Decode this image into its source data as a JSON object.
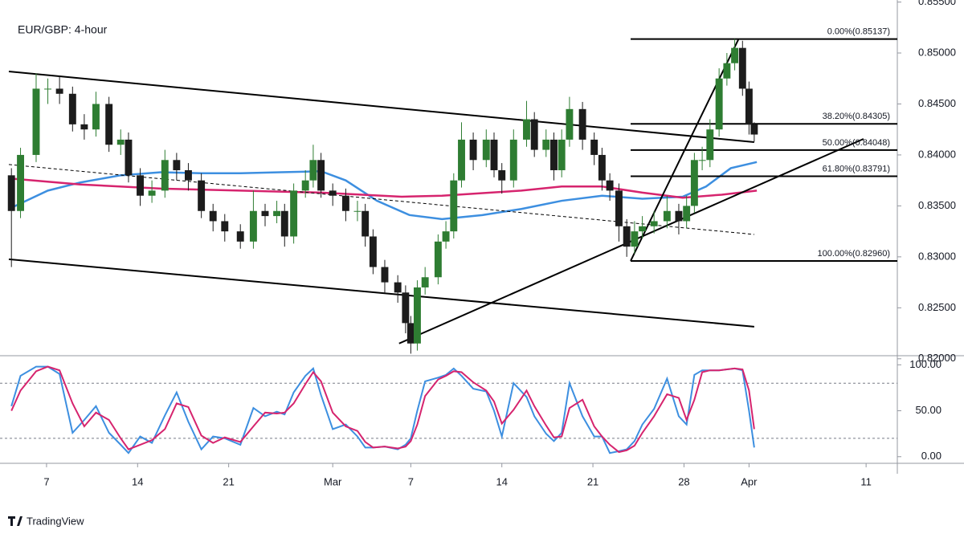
{
  "chart_data": {
    "type": "candlestick",
    "title": "EUR/GBP: 4-hour",
    "up_color": "#2e7d32",
    "down_color": "#1c1c1c",
    "x": [
      4.3,
      5.0,
      6.2,
      7.1,
      8.0,
      9.0,
      9.9,
      10.8,
      11.8,
      12.7,
      13.3,
      14.2,
      15.1,
      16.1,
      17.0,
      17.9,
      18.9,
      19.8,
      20.7,
      21.9,
      22.9,
      23.8,
      24.7,
      25.3,
      26.0,
      26.9,
      27.5,
      28.1,
      29.0,
      30.0,
      30.9,
      31.5,
      32.1,
      33.0,
      34.0,
      34.6,
      35.0,
      35.5,
      36.1,
      37.1,
      37.7,
      38.3,
      38.9,
      39.8,
      40.8,
      41.4,
      42.0,
      42.9,
      43.9,
      44.5,
      45.4,
      46.0,
      46.6,
      47.2,
      48.2,
      49.1,
      49.7,
      50.3,
      51.0,
      51.6,
      52.2,
      52.8,
      53.7,
      54.7,
      55.6,
      56.2,
      56.8,
      57.4,
      58.0,
      58.7,
      59.3,
      59.9,
      60.5,
      61.0,
      61.4
    ],
    "open": [
      0.838,
      0.8345,
      0.84,
      0.8465,
      0.8465,
      0.846,
      0.843,
      0.8425,
      0.845,
      0.841,
      0.8415,
      0.838,
      0.836,
      0.8365,
      0.8395,
      0.8385,
      0.8375,
      0.8345,
      0.8335,
      0.8325,
      0.8315,
      0.8345,
      0.834,
      0.8345,
      0.832,
      0.8365,
      0.8375,
      0.8395,
      0.8365,
      0.836,
      0.8345,
      0.8345,
      0.832,
      0.829,
      0.8275,
      0.8265,
      0.8235,
      0.8215,
      0.827,
      0.828,
      0.8315,
      0.8325,
      0.8375,
      0.8415,
      0.8395,
      0.8415,
      0.8385,
      0.8375,
      0.8415,
      0.8435,
      0.8405,
      0.8415,
      0.8385,
      0.8415,
      0.8445,
      0.8415,
      0.84,
      0.8375,
      0.8365,
      0.833,
      0.831,
      0.8325,
      0.833,
      0.8335,
      0.8345,
      0.8335,
      0.835,
      0.8395,
      0.8395,
      0.8425,
      0.8475,
      0.849,
      0.8505,
      0.8465,
      0.843
    ],
    "high": [
      0.8387,
      0.8407,
      0.848,
      0.8475,
      0.8478,
      0.8467,
      0.844,
      0.8462,
      0.8457,
      0.8425,
      0.8422,
      0.8387,
      0.8375,
      0.8405,
      0.8402,
      0.8392,
      0.8382,
      0.8352,
      0.8342,
      0.8332,
      0.8365,
      0.8352,
      0.8355,
      0.8352,
      0.8372,
      0.8385,
      0.841,
      0.8402,
      0.8372,
      0.8367,
      0.8355,
      0.8352,
      0.8327,
      0.8297,
      0.8282,
      0.8272,
      0.8242,
      0.8277,
      0.829,
      0.8322,
      0.8335,
      0.8382,
      0.8432,
      0.8422,
      0.8425,
      0.8422,
      0.8392,
      0.8425,
      0.8453,
      0.8442,
      0.8425,
      0.8422,
      0.8425,
      0.8457,
      0.8452,
      0.8422,
      0.8407,
      0.8382,
      0.8372,
      0.8337,
      0.8335,
      0.834,
      0.8345,
      0.836,
      0.8352,
      0.836,
      0.8402,
      0.8408,
      0.8435,
      0.8485,
      0.85,
      0.85137,
      0.8512,
      0.8472,
      0.8432
    ],
    "low": [
      0.829,
      0.8338,
      0.8393,
      0.845,
      0.845,
      0.8423,
      0.8415,
      0.8418,
      0.8403,
      0.84,
      0.8373,
      0.835,
      0.8353,
      0.8358,
      0.8375,
      0.8365,
      0.8338,
      0.8325,
      0.8315,
      0.8308,
      0.8308,
      0.833,
      0.8333,
      0.831,
      0.8313,
      0.8358,
      0.8368,
      0.8358,
      0.835,
      0.8335,
      0.8335,
      0.831,
      0.8283,
      0.8265,
      0.8255,
      0.8225,
      0.8205,
      0.8208,
      0.8263,
      0.8273,
      0.8308,
      0.8318,
      0.8368,
      0.8385,
      0.8388,
      0.8378,
      0.8362,
      0.8368,
      0.8408,
      0.8398,
      0.8398,
      0.8375,
      0.8378,
      0.8408,
      0.8405,
      0.839,
      0.8365,
      0.8355,
      0.8315,
      0.83,
      0.8303,
      0.8318,
      0.8323,
      0.8328,
      0.8322,
      0.8328,
      0.8343,
      0.8385,
      0.8388,
      0.8418,
      0.8468,
      0.8483,
      0.8458,
      0.842,
      0.8413
    ],
    "close": [
      0.8345,
      0.84,
      0.8465,
      0.8465,
      0.846,
      0.843,
      0.8425,
      0.845,
      0.841,
      0.8415,
      0.838,
      0.836,
      0.8365,
      0.8395,
      0.8385,
      0.8375,
      0.8345,
      0.8335,
      0.8325,
      0.8315,
      0.8345,
      0.834,
      0.8345,
      0.832,
      0.8365,
      0.8375,
      0.8395,
      0.8365,
      0.836,
      0.8345,
      0.8345,
      0.832,
      0.829,
      0.8275,
      0.8265,
      0.8235,
      0.8215,
      0.827,
      0.828,
      0.8315,
      0.8325,
      0.8375,
      0.8415,
      0.8395,
      0.8415,
      0.8385,
      0.8375,
      0.8415,
      0.8435,
      0.8405,
      0.8415,
      0.8385,
      0.8415,
      0.8445,
      0.8415,
      0.84,
      0.8375,
      0.8365,
      0.833,
      0.831,
      0.8325,
      0.833,
      0.8335,
      0.8345,
      0.8335,
      0.835,
      0.8395,
      0.8395,
      0.8425,
      0.8475,
      0.849,
      0.8505,
      0.8465,
      0.843,
      0.842
    ],
    "xlim": [
      4.04,
      72.4
    ],
    "xticks": [
      7,
      14,
      21,
      {
        "value": 29,
        "label": "Mar"
      },
      {
        "value": 35,
        "label": "7"
      },
      {
        "value": 42,
        "label": "14"
      },
      {
        "value": 49,
        "label": "21"
      },
      {
        "value": 56,
        "label": "28"
      },
      {
        "value": 61,
        "label": "Apr"
      },
      {
        "value": 70,
        "label": "11"
      }
    ],
    "ylim": [
      0.8203,
      0.8552
    ],
    "yticks": [
      {
        "value": 0.82,
        "label": "0.82000"
      },
      {
        "value": 0.825,
        "label": "0.82500"
      },
      {
        "value": 0.83,
        "label": "0.83000"
      },
      {
        "value": 0.835,
        "label": "0.83500"
      },
      {
        "value": 0.84,
        "label": "0.84000"
      },
      {
        "value": 0.845,
        "label": "0.84500"
      },
      {
        "value": 0.85,
        "label": "0.85000"
      },
      {
        "value": 0.855,
        "label": "0.85500"
      }
    ],
    "moving_averages": [
      {
        "color": "#3d8fe0",
        "x": [
          4.1,
          7.1,
          9.6,
          12.7,
          15.8,
          18.9,
          21.9,
          25.0,
          28.1,
          30.0,
          32.4,
          34.9,
          37.4,
          40.5,
          43.5,
          46.6,
          49.7,
          52.8,
          55.9,
          57.7,
          59.6,
          61.6
        ],
        "values": [
          0.8347,
          0.8365,
          0.8373,
          0.838,
          0.8383,
          0.8382,
          0.8382,
          0.8383,
          0.8384,
          0.8375,
          0.8355,
          0.8341,
          0.8337,
          0.8341,
          0.8347,
          0.8355,
          0.836,
          0.8357,
          0.8359,
          0.8369,
          0.8387,
          0.8393
        ]
      },
      {
        "color": "#d6246e",
        "x": [
          4.1,
          9.6,
          15.8,
          21.9,
          28.1,
          34.3,
          37.4,
          43.5,
          46.6,
          49.7,
          52.8,
          55.9,
          58.9,
          61.6
        ],
        "values": [
          0.8377,
          0.8371,
          0.8367,
          0.8365,
          0.8363,
          0.8359,
          0.836,
          0.8365,
          0.8369,
          0.8369,
          0.8363,
          0.8358,
          0.8361,
          0.8365
        ]
      }
    ],
    "trend_lines": [
      {
        "x": [
          4.1,
          61.4
        ],
        "y": [
          0.84819,
          0.84126
        ],
        "dashed": false
      },
      {
        "x": [
          4.1,
          61.4
        ],
        "y": [
          0.82976,
          0.82315
        ],
        "dashed": false
      },
      {
        "x": [
          4.1,
          61.4
        ],
        "y": [
          0.83906,
          0.8322
        ],
        "dashed": true
      },
      {
        "x": [
          34.1,
          69.8
        ],
        "y": [
          0.8215,
          0.84157
        ],
        "dashed": false
      },
      {
        "x": [
          51.9,
          60.2
        ],
        "y": [
          0.8296,
          0.85137
        ],
        "dashed": false
      }
    ],
    "fib": {
      "x_start": 51.9,
      "levels": [
        {
          "value": 0.85137,
          "label": "0.00%(0.85137)"
        },
        {
          "value": 0.84305,
          "label": "38.20%(0.84305)"
        },
        {
          "value": 0.84048,
          "label": "50.00%(0.84048)"
        },
        {
          "value": 0.83791,
          "label": "61.80%(0.83791)"
        },
        {
          "value": 0.8296,
          "label": "100.00%(0.82960)"
        }
      ]
    },
    "indicator": {
      "type": "line",
      "ylim": [
        -7.2,
        109.9
      ],
      "yticks": [
        {
          "value": 0,
          "label": "0.00"
        },
        {
          "value": 50,
          "label": "50.00"
        },
        {
          "value": 100,
          "label": "100.00"
        }
      ],
      "levels": [
        20,
        80
      ],
      "series": [
        {
          "color": "#3d8fe0",
          "values": [
            55,
            88,
            98,
            98,
            90,
            26,
            40,
            55,
            26,
            13,
            4,
            22,
            15,
            45,
            70,
            38,
            8,
            22,
            20,
            13,
            53,
            44,
            49,
            46,
            70,
            88,
            96,
            67,
            30,
            35,
            22,
            10,
            10,
            11,
            8,
            13,
            20,
            50,
            82,
            86,
            89,
            96,
            88,
            74,
            71,
            50,
            22,
            80,
            65,
            44,
            25,
            17,
            26,
            80,
            44,
            22,
            22,
            4,
            6,
            8,
            17,
            35,
            52,
            85,
            44,
            35,
            89,
            94,
            94,
            94,
            95,
            96,
            94,
            50,
            10
          ]
        },
        {
          "color": "#d6246e",
          "values": [
            50,
            72,
            93,
            98,
            94,
            58,
            33,
            48,
            40,
            20,
            8,
            13,
            18,
            30,
            58,
            54,
            23,
            15,
            21,
            16,
            33,
            48,
            47,
            48,
            58,
            79,
            92,
            82,
            48,
            33,
            28,
            16,
            10,
            11,
            9,
            11,
            17,
            35,
            66,
            84,
            88,
            93,
            92,
            81,
            72,
            60,
            36,
            51,
            72,
            55,
            34,
            21,
            22,
            53,
            62,
            33,
            22,
            13,
            5,
            7,
            12,
            26,
            44,
            68,
            64,
            40,
            62,
            92,
            94,
            94,
            95,
            96,
            95,
            72,
            30
          ]
        }
      ]
    }
  },
  "footer": {
    "brand": "TradingView"
  }
}
